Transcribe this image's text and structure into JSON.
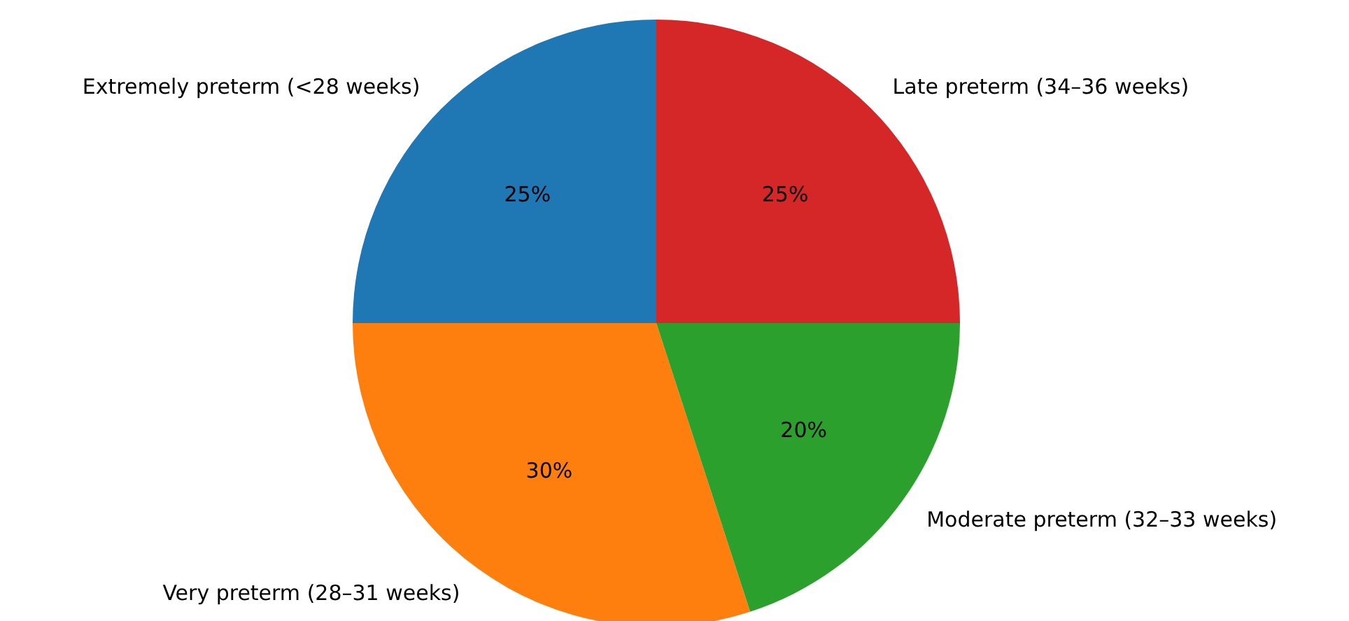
{
  "chart_data": {
    "type": "pie",
    "categories": [
      "Extremely preterm (<28 weeks)",
      "Very preterm (28–31 weeks)",
      "Moderate preterm (32–33 weeks)",
      "Late preterm (34–36 weeks)"
    ],
    "values": [
      25,
      30,
      20,
      25
    ],
    "colors": [
      "#1f77b4",
      "#ff7f0e",
      "#2ca02c",
      "#d62728"
    ],
    "value_labels": [
      "25%",
      "30%",
      "20%",
      "25%"
    ]
  }
}
